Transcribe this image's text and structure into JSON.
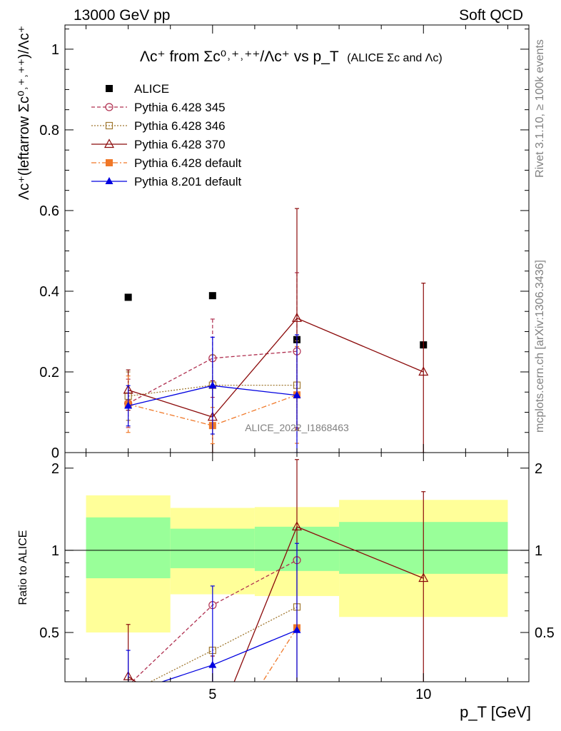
{
  "header": {
    "left": "13000 GeV pp",
    "right": "Soft QCD"
  },
  "side_labels": {
    "rivet": "Rivet 3.1.10, ≥ 100k events",
    "mcplots": "mcplots.cern.ch [arXiv:1306.3436]"
  },
  "watermark": "ALICE_2022_I1868463",
  "chart_data": {
    "type": "scatter",
    "title": {
      "main": "Λc⁺ from Σc⁰˒⁺˒⁺⁺/Λc⁺ vs p_T",
      "sub": "(ALICE Σc and Λc)"
    },
    "xlabel": "p_T [GeV]",
    "ylabel": "Λc⁺(leftarrow Σc⁰˒⁺˒⁺⁺)/Λc⁺",
    "ratio_ylabel": "Ratio to ALICE",
    "xlim": [
      1.5,
      12.5
    ],
    "ylim": [
      0,
      1.06
    ],
    "ratio_ylim": [
      0.33,
      2.28
    ],
    "xticks": [
      5,
      10
    ],
    "yticks": [
      0,
      0.2,
      0.4,
      0.6,
      0.8,
      1
    ],
    "ytick_labels": [
      "0",
      "0.2",
      "0.4",
      "0.6",
      "0.8",
      "1"
    ],
    "ratio_yticks": [
      0.5,
      1,
      2
    ],
    "ratio_ytick_labels": [
      "0.5",
      "1",
      "2"
    ],
    "xtick_labels": [
      "5",
      "10"
    ],
    "legend_position": "top-left",
    "series": [
      {
        "name": "ALICE",
        "marker": "square-filled",
        "color": "#000000",
        "line": "none",
        "x": [
          3,
          5,
          7,
          10
        ],
        "y": [
          0.385,
          0.389,
          0.28,
          0.267
        ]
      },
      {
        "name": "Pythia 6.428 345",
        "marker": "circle-open",
        "color": "#B03050",
        "line": "dashed",
        "x": [
          3,
          5,
          7
        ],
        "y": [
          0.122,
          0.234,
          0.251
        ],
        "err": [
          0.06,
          0.097,
          0.195
        ],
        "ratio": [
          0.32,
          0.63,
          0.92
        ]
      },
      {
        "name": "Pythia 6.428 346",
        "marker": "square-open",
        "color": "#A07830",
        "line": "dotted",
        "x": [
          3,
          5,
          7
        ],
        "y": [
          0.14,
          0.167,
          0.167
        ],
        "err": [
          0.06,
          0.075,
          0.11
        ],
        "ratio": [
          0.3,
          0.43,
          0.62
        ]
      },
      {
        "name": "Pythia 6.428 370",
        "marker": "triangle-open",
        "color": "#8B0A0A",
        "line": "solid",
        "x": [
          3,
          5,
          7,
          10
        ],
        "y": [
          0.155,
          0.088,
          0.333,
          0.2
        ],
        "err": [
          0.05,
          0.09,
          0.272,
          0.22
        ],
        "ratio": [
          0.345,
          0.21,
          1.22,
          0.79
        ],
        "ratio_err": [
          0.19,
          0.2,
          0.93,
          0.85
        ]
      },
      {
        "name": "Pythia 6.428 default",
        "marker": "square-filled",
        "color": "#F07828",
        "line": "dashdot",
        "x": [
          3,
          5,
          7
        ],
        "y": [
          0.12,
          0.067,
          0.143
        ],
        "err": [
          0.07,
          0.045,
          0.12
        ],
        "ratio": [
          0.3,
          0.17,
          0.52
        ]
      },
      {
        "name": "Pythia 8.201 default",
        "marker": "triangle-filled",
        "color": "#0000E0",
        "line": "solid",
        "x": [
          3,
          5,
          7
        ],
        "y": [
          0.116,
          0.166,
          0.142
        ],
        "err": [
          0.05,
          0.12,
          0.15
        ],
        "ratio": [
          0.3,
          0.38,
          0.51
        ],
        "ratio_err": [
          0.13,
          0.36,
          0.55
        ]
      }
    ],
    "ratio_bands": [
      {
        "x0": 2,
        "x1": 4,
        "outer": [
          0.5,
          1.59
        ],
        "inner": [
          0.79,
          1.32
        ]
      },
      {
        "x0": 4,
        "x1": 6,
        "outer": [
          0.69,
          1.43
        ],
        "inner": [
          0.86,
          1.2
        ]
      },
      {
        "x0": 6,
        "x1": 8,
        "outer": [
          0.68,
          1.44
        ],
        "inner": [
          0.84,
          1.22
        ]
      },
      {
        "x0": 8,
        "x1": 12,
        "outer": [
          0.57,
          1.53
        ],
        "inner": [
          0.82,
          1.27
        ]
      }
    ],
    "colors": {
      "outer_band": "#FFFF99",
      "inner_band": "#99FF99"
    }
  }
}
